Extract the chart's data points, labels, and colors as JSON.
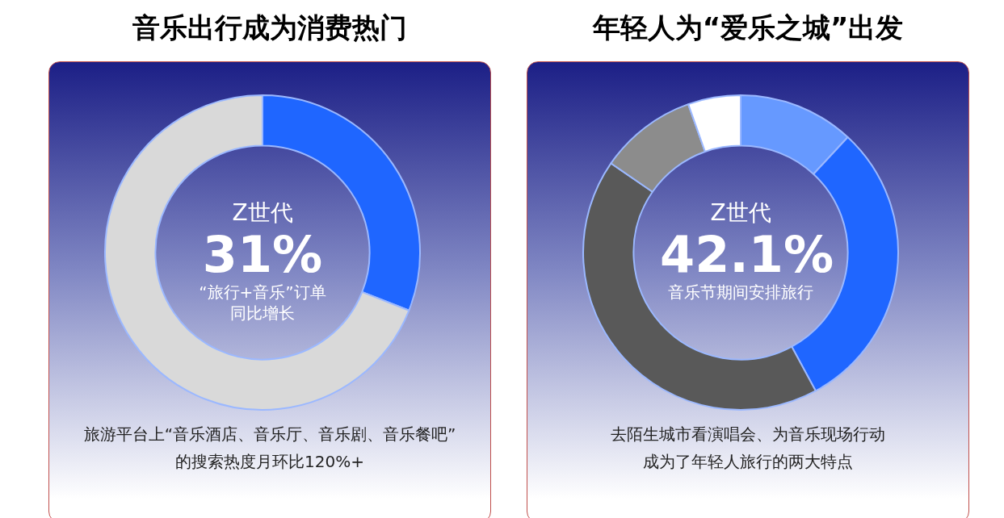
{
  "chart_data": [
    {
      "type": "donut",
      "title": "音乐出行成为消费热门",
      "categories": [
        null,
        null
      ],
      "values": [
        31,
        69
      ],
      "colors": [
        "#1f66ff",
        "#d9d9d9"
      ],
      "annotations": [
        "Z世代",
        "31%",
        "“旅行+音乐”订单",
        "同比增长",
        "旅游平台上“音乐酒店、音乐厅、音乐剧、音乐餐吧”",
        "的搜索热度月环比120%+"
      ]
    },
    {
      "type": "donut",
      "title": "年轻人为“爱乐之城”出发",
      "categories": [
        null,
        null,
        null,
        null,
        null
      ],
      "values": [
        11.9,
        30.2,
        42.5,
        10,
        5.4
      ],
      "colors": [
        "#6699ff",
        "#1f66ff",
        "#595959",
        "#8c8c8c",
        "#ffffff"
      ],
      "annotations": [
        "Z世代",
        "42.1%",
        "音乐节期间安排旅行",
        "去陌生城市看演唱会、为音乐现场行动",
        "成为了年轻人旅行的两大特点"
      ]
    }
  ]
}
